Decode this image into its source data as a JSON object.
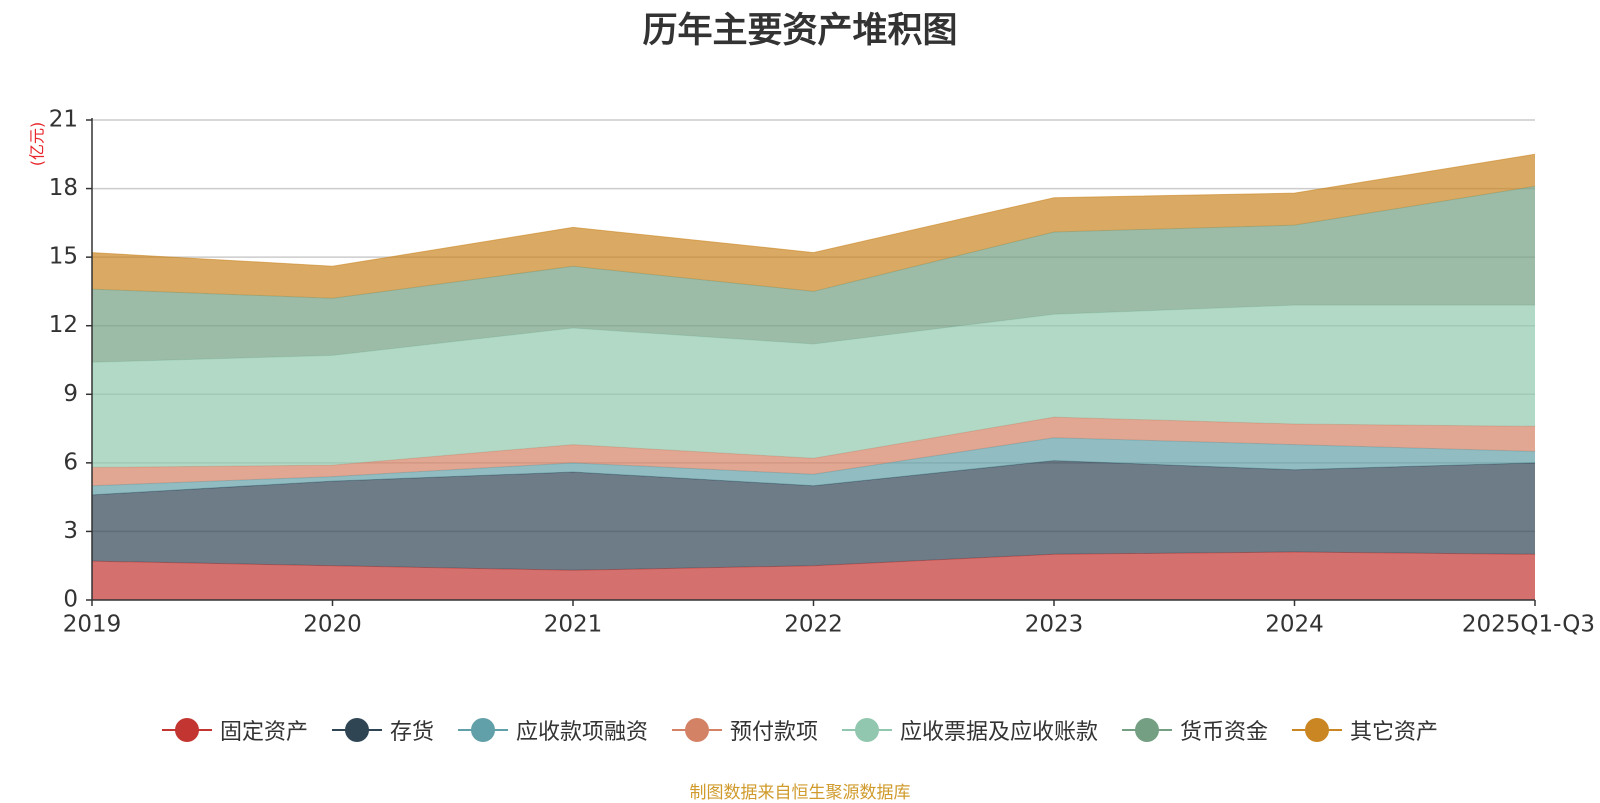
{
  "chart_data": {
    "type": "area",
    "stacked": true,
    "title": "历年主要资产堆积图",
    "ylabel": "(亿元)",
    "ylim": [
      0,
      21
    ],
    "yticks": [
      0,
      3,
      6,
      9,
      12,
      15,
      18,
      21
    ],
    "categories": [
      "2019",
      "2020",
      "2021",
      "2022",
      "2023",
      "2024",
      "2025Q1-Q3"
    ],
    "grid": true,
    "legend_position": "bottom",
    "series": [
      {
        "name": "固定资产",
        "color": "#c23531",
        "values": [
          1.7,
          1.5,
          1.3,
          1.5,
          2.0,
          2.1,
          2.0
        ]
      },
      {
        "name": "存货",
        "color": "#2f4554",
        "values": [
          2.9,
          3.7,
          4.3,
          3.5,
          4.1,
          3.6,
          4.0
        ]
      },
      {
        "name": "应收款项融资",
        "color": "#61a0a8",
        "values": [
          0.4,
          0.2,
          0.4,
          0.5,
          1.0,
          1.1,
          0.5
        ]
      },
      {
        "name": "预付款项",
        "color": "#d48265",
        "values": [
          0.8,
          0.5,
          0.8,
          0.7,
          0.9,
          0.9,
          1.1
        ]
      },
      {
        "name": "应收票据及应收账款",
        "color": "#91c7ae",
        "values": [
          4.6,
          4.8,
          5.1,
          5.0,
          4.5,
          5.2,
          5.3
        ]
      },
      {
        "name": "货币资金",
        "color": "#749f83",
        "values": [
          3.2,
          2.5,
          2.7,
          2.3,
          3.6,
          3.5,
          5.2
        ]
      },
      {
        "name": "其它资产",
        "color": "#ca8622",
        "values": [
          1.6,
          1.4,
          1.7,
          1.7,
          1.5,
          1.4,
          1.4
        ]
      }
    ]
  },
  "source": "制图数据来自恒生聚源数据库"
}
